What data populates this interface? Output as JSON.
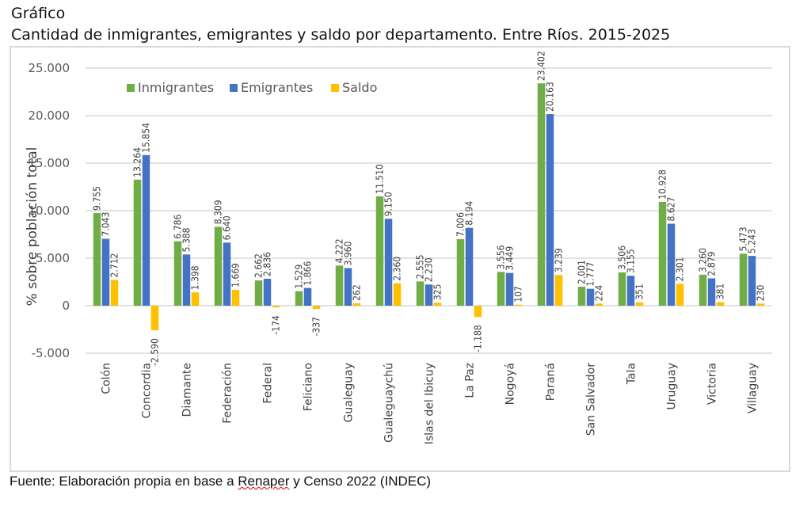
{
  "heading": "Gráfico",
  "chart_title": "Cantidad de inmigrantes, emigrantes y saldo por departamento. Entre Ríos. 2015-2025",
  "source": {
    "prefix": "Fuente: Elaboración propia en base a ",
    "underlined": "Renaper",
    "suffix": " y Censo 2022 (INDEC)"
  },
  "chart_data": {
    "type": "bar",
    "title": "Cantidad de inmigrantes, emigrantes y saldo por departamento. Entre Ríos. 2015-2025",
    "xlabel": "",
    "ylabel": "% sobre población total",
    "ylim": [
      -5000,
      25000
    ],
    "yticks": [
      25000,
      20000,
      15000,
      10000,
      5000,
      0,
      -5000
    ],
    "ytick_labels": [
      "25.000",
      "20.000",
      "15.000",
      "10.000",
      "5.000",
      "0",
      "-5.000"
    ],
    "grid": true,
    "legend_position": "top-left",
    "categories": [
      "Colón",
      "Concordia",
      "Diamante",
      "Federación",
      "Federal",
      "Feliciano",
      "Gualeguay",
      "Gualeguaychú",
      "Islas del Ibicuy",
      "La Paz",
      "Nogoyá",
      "Paraná",
      "San Salvador",
      "Tala",
      "Uruguay",
      "Victoria",
      "Villaguay"
    ],
    "series": [
      {
        "name": "Inmigrantes",
        "color": "#70ad47",
        "values": [
          9755,
          13264,
          6786,
          8309,
          2662,
          1529,
          4222,
          11510,
          2555,
          7006,
          3556,
          23402,
          2001,
          3506,
          10928,
          3260,
          5473
        ],
        "labels": [
          "9.755",
          "13.264",
          "6.786",
          "8.309",
          "2.662",
          "1.529",
          "4.222",
          "11.510",
          "2.555",
          "7.006",
          "3.556",
          "23.402",
          "2.001",
          "3.506",
          "10.928",
          "3.260",
          "5.473"
        ]
      },
      {
        "name": "Emigrantes",
        "color": "#4472c4",
        "values": [
          7043,
          15854,
          5388,
          6640,
          2836,
          1866,
          3960,
          9150,
          2230,
          8194,
          3449,
          20163,
          1777,
          3155,
          8627,
          2879,
          5243
        ],
        "labels": [
          "7.043",
          "15.854",
          "5.388",
          "6.640",
          "2.836",
          "1.866",
          "3.960",
          "9.150",
          "2.230",
          "8.194",
          "3.449",
          "20.163",
          "1.777",
          "3.155",
          "8.627",
          "2.879",
          "5.243"
        ]
      },
      {
        "name": "Saldo",
        "color": "#ffc000",
        "values": [
          2712,
          -2590,
          1398,
          1669,
          -174,
          -337,
          262,
          2360,
          325,
          -1188,
          107,
          3239,
          224,
          351,
          2301,
          381,
          230
        ],
        "labels": [
          "2.712",
          "-2.590",
          "1.398",
          "1.669",
          "-174",
          "-337",
          "262",
          "2.360",
          "325",
          "-1.188",
          "107",
          "3.239",
          "224",
          "351",
          "2.301",
          "381",
          "230"
        ]
      }
    ]
  }
}
